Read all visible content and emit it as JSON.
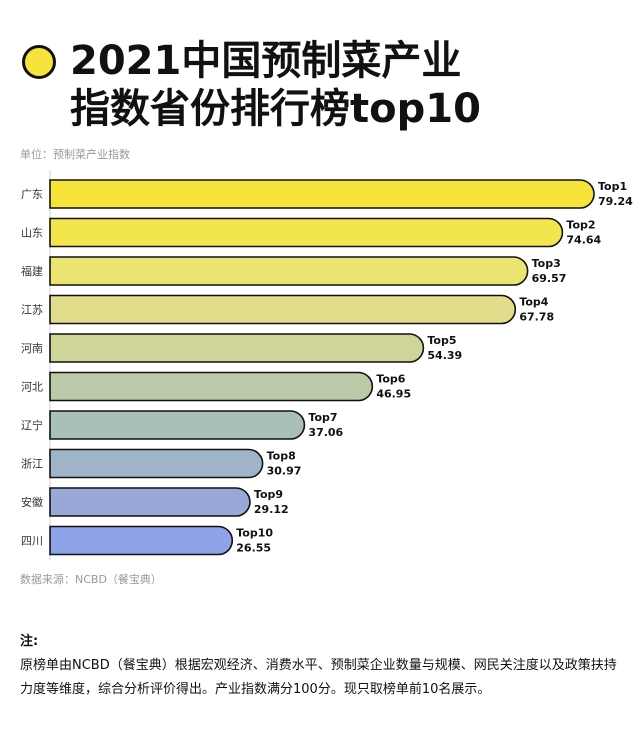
{
  "header": {
    "title_line1": "2021中国预制菜产业",
    "title_line2": "指数省份排行榜top10",
    "unit": "单位：预制菜产业指数"
  },
  "chart_data": {
    "type": "bar",
    "orientation": "horizontal",
    "categories": [
      "广东",
      "山东",
      "福建",
      "江苏",
      "河南",
      "河北",
      "辽宁",
      "浙江",
      "安徽",
      "四川"
    ],
    "values": [
      79.24,
      74.64,
      69.57,
      67.78,
      54.39,
      46.95,
      37.06,
      30.97,
      29.12,
      26.55
    ],
    "ranks": [
      "Top1",
      "Top2",
      "Top3",
      "Top4",
      "Top5",
      "Top6",
      "Top7",
      "Top8",
      "Top9",
      "Top10"
    ],
    "colors": [
      "#f7e43a",
      "#f3e54e",
      "#ece470",
      "#e1dd8a",
      "#cfd498",
      "#bbcba8",
      "#a9c0b8",
      "#9fb4c8",
      "#98a9d8",
      "#8ea3e8"
    ],
    "xlim": [
      0,
      79.24
    ],
    "ylabel": "单位：预制菜产业指数"
  },
  "footer": {
    "source": "数据来源：NCBD（餐宝典）",
    "note_title": "注:",
    "note_body": "原榜单由NCBD（餐宝典）根据宏观经济、消费水平、预制菜企业数量与规模、网民关注度以及政策扶持力度等维度，综合分析评价得出。产业指数满分100分。现只取榜单前10名展示。"
  }
}
